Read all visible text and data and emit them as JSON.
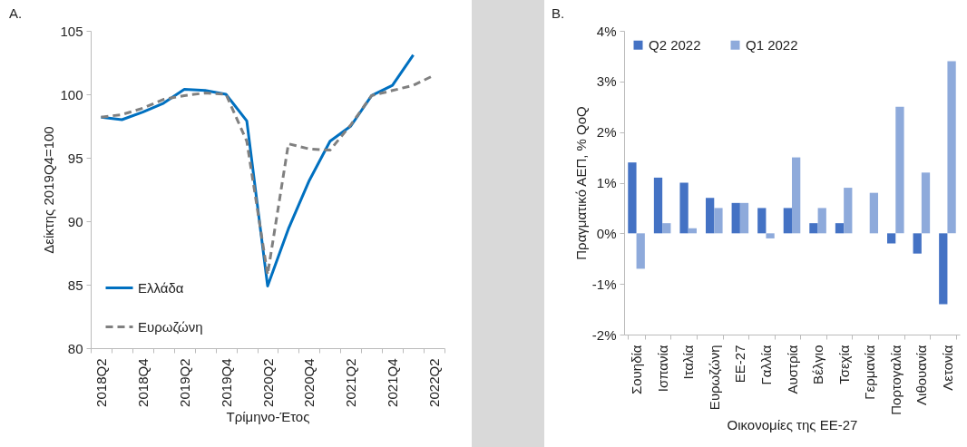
{
  "chart_data": [
    {
      "type": "line",
      "title": "A.",
      "xlabel": "Τρίμηνο-Έτος",
      "ylabel": "Δείκτης 2019Q4=100",
      "categories": [
        "2018Q2",
        null,
        "2018Q4",
        null,
        "2019Q2",
        null,
        "2019Q4",
        null,
        "2020Q2",
        null,
        "2020Q4",
        null,
        "2021Q2",
        null,
        "2021Q4",
        null,
        "2022Q2"
      ],
      "series": [
        {
          "name": "Ελλάδα",
          "color": "#0070c0",
          "line_style": "solid",
          "values": [
            98.2,
            98.0,
            98.6,
            99.3,
            100.4,
            100.3,
            100.0,
            97.9,
            84.9,
            89.4,
            93.2,
            96.3,
            97.5,
            99.9,
            100.7,
            103.1,
            null
          ]
        },
        {
          "name": "Ευρωζώνη",
          "color": "#808080",
          "line_style": "dashed",
          "values": [
            98.2,
            98.4,
            98.9,
            99.6,
            99.9,
            100.1,
            100.0,
            96.3,
            85.8,
            96.1,
            95.7,
            95.6,
            97.6,
            99.9,
            100.3,
            100.7,
            101.5
          ]
        }
      ],
      "ylim": [
        80,
        105
      ],
      "yticks": [
        80,
        85,
        90,
        95,
        100,
        105
      ],
      "grid": false,
      "legend": "bottom left",
      "marker": "none"
    },
    {
      "type": "bar",
      "title": "B.",
      "xlabel": "Οικονομίες της ΕΕ-27",
      "ylabel": "Πραγματικό ΑΕΠ, % QoQ",
      "categories": [
        "Σουηδία",
        "Ισπανία",
        "Ιταλία",
        "Ευρωζώνη",
        "ΕΕ-27",
        "Γαλλία",
        "Αυστρία",
        "Βέλγιο",
        "Τσεχία",
        "Γερμανία",
        "Πορτογαλία",
        "Λιθουανία",
        "Λετονία"
      ],
      "series": [
        {
          "name": "Q2 2022",
          "color": "#4472c4",
          "values": [
            1.4,
            1.1,
            1.0,
            0.7,
            0.6,
            0.5,
            0.5,
            0.2,
            0.2,
            0.0,
            -0.2,
            -0.4,
            -1.4
          ]
        },
        {
          "name": "Q1 2022",
          "color": "#8eaadb",
          "values": [
            -0.7,
            0.2,
            0.1,
            0.5,
            0.6,
            -0.1,
            1.5,
            0.5,
            0.9,
            0.8,
            2.5,
            1.2,
            3.4
          ]
        }
      ],
      "ylim": [
        -2,
        4
      ],
      "yticks": [
        {
          "value": -2,
          "label": "-2%"
        },
        {
          "value": -1,
          "label": "-1%"
        },
        {
          "value": 0,
          "label": "0%"
        },
        {
          "value": 1,
          "label": "1%"
        },
        {
          "value": 2,
          "label": "2%"
        },
        {
          "value": 3,
          "label": "3%"
        },
        {
          "value": 4,
          "label": "4%"
        }
      ],
      "grid": false,
      "legend": "top left"
    }
  ]
}
